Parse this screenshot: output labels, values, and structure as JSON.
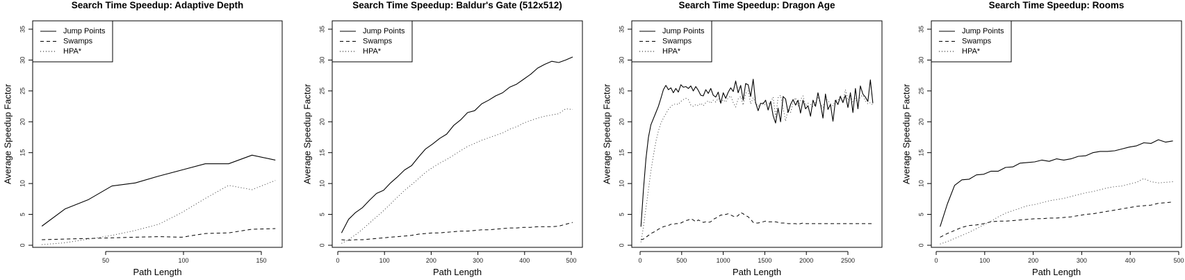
{
  "figure": {
    "yticks": [
      0,
      5,
      10,
      15,
      20,
      25,
      30,
      35
    ],
    "legend": [
      {
        "label": "Jump Points",
        "style": "solid"
      },
      {
        "label": "Swamps",
        "style": "dashed"
      },
      {
        "label": "HPA*",
        "style": "dotted"
      }
    ]
  },
  "chart_data": [
    {
      "type": "line",
      "title": "Search Time Speedup: Adaptive Depth",
      "xlabel": "Path Length",
      "ylabel": "Average Speedup Factor",
      "xticks": [
        50,
        100,
        150
      ],
      "xlim": [
        4,
        164
      ],
      "ylim": [
        0,
        35
      ],
      "grid": false,
      "legend_position": "topleft",
      "x": [
        9,
        24,
        39,
        54,
        69,
        84,
        99,
        114,
        129,
        144,
        159
      ],
      "series": [
        {
          "name": "Jump Points",
          "style": "solid",
          "values": [
            3.1,
            5.9,
            7.4,
            9.6,
            10.1,
            11.2,
            12.2,
            13.2,
            13.2,
            14.6,
            13.8
          ]
        },
        {
          "name": "Swamps",
          "style": "dashed",
          "values": [
            0.9,
            1.0,
            1.1,
            1.2,
            1.3,
            1.4,
            1.3,
            1.9,
            2.0,
            2.6,
            2.7
          ]
        },
        {
          "name": "HPA*",
          "style": "dotted",
          "values": [
            0.1,
            0.4,
            1.0,
            1.6,
            2.4,
            3.4,
            5.3,
            7.6,
            9.7,
            9.0,
            10.5
          ]
        }
      ]
    },
    {
      "type": "line",
      "title": "Search Time Speedup: Baldur's Gate (512x512)",
      "xlabel": "Path Length",
      "ylabel": "Average Speedup Factor",
      "xticks": [
        0,
        100,
        200,
        300,
        400,
        500
      ],
      "xlim": [
        -12,
        524
      ],
      "ylim": [
        0,
        35
      ],
      "grid": false,
      "legend_position": "topleft",
      "x": [
        8,
        23,
        38,
        53,
        68,
        83,
        98,
        113,
        128,
        143,
        158,
        173,
        188,
        203,
        218,
        233,
        248,
        263,
        278,
        293,
        308,
        323,
        338,
        353,
        368,
        383,
        398,
        413,
        428,
        443,
        458,
        473,
        488,
        503
      ],
      "series": [
        {
          "name": "Jump Points",
          "style": "solid",
          "values": [
            2.0,
            4.2,
            5.3,
            6.1,
            7.3,
            8.4,
            8.9,
            10.1,
            11.1,
            12.2,
            12.9,
            14.3,
            15.6,
            16.4,
            17.3,
            18.0,
            19.4,
            20.3,
            21.5,
            21.8,
            22.9,
            23.5,
            24.2,
            24.7,
            25.6,
            26.1,
            26.9,
            27.7,
            28.7,
            29.3,
            29.8,
            29.6,
            30.0,
            30.5
          ]
        },
        {
          "name": "Swamps",
          "style": "dashed",
          "values": [
            0.9,
            0.8,
            0.9,
            0.9,
            1.0,
            1.1,
            1.2,
            1.3,
            1.4,
            1.5,
            1.6,
            1.8,
            1.9,
            2.0,
            2.0,
            2.1,
            2.2,
            2.3,
            2.3,
            2.4,
            2.5,
            2.5,
            2.6,
            2.7,
            2.8,
            2.8,
            2.9,
            2.9,
            3.0,
            3.0,
            3.0,
            3.1,
            3.4,
            3.7
          ]
        },
        {
          "name": "HPA*",
          "style": "dotted",
          "values": [
            0.3,
            0.9,
            1.7,
            2.6,
            3.6,
            4.6,
            5.6,
            6.7,
            7.8,
            8.9,
            9.8,
            10.8,
            11.8,
            12.6,
            13.3,
            13.9,
            14.6,
            15.3,
            16.0,
            16.5,
            17.0,
            17.4,
            17.8,
            18.2,
            18.8,
            19.2,
            19.8,
            20.2,
            20.6,
            20.9,
            21.1,
            21.3,
            22.1,
            22.0
          ]
        }
      ]
    },
    {
      "type": "line",
      "title": "Search Time Speedup: Dragon Age",
      "xlabel": "Path Length",
      "ylabel": "Average Speedup Factor",
      "xticks": [
        0,
        500,
        1000,
        1500,
        2000,
        2500
      ],
      "xlim": [
        -100,
        2910
      ],
      "ylim": [
        0,
        35
      ],
      "grid": false,
      "legend_position": "topleft",
      "x": [
        10,
        40,
        70,
        100,
        130,
        160,
        190,
        220,
        250,
        280,
        310,
        340,
        370,
        400,
        430,
        460,
        490,
        520,
        550,
        580,
        610,
        640,
        670,
        700,
        730,
        760,
        790,
        820,
        850,
        880,
        910,
        940,
        970,
        1000,
        1030,
        1060,
        1090,
        1120,
        1150,
        1180,
        1210,
        1240,
        1270,
        1300,
        1330,
        1360,
        1390,
        1420,
        1450,
        1480,
        1510,
        1540,
        1570,
        1600,
        1630,
        1660,
        1690,
        1720,
        1750,
        1780,
        1810,
        1840,
        1870,
        1900,
        1930,
        1960,
        1990,
        2020,
        2050,
        2080,
        2110,
        2140,
        2170,
        2200,
        2230,
        2260,
        2290,
        2320,
        2350,
        2380,
        2410,
        2440,
        2470,
        2500,
        2530,
        2560,
        2590,
        2620,
        2650,
        2680,
        2710,
        2740,
        2770,
        2800
      ],
      "series": [
        {
          "name": "Jump Points",
          "style": "solid",
          "values": [
            3.0,
            9.0,
            14.0,
            17.5,
            19.5,
            20.5,
            21.5,
            22.5,
            23.8,
            25.2,
            25.9,
            25.2,
            25.5,
            24.7,
            25.4,
            24.8,
            26.0,
            25.6,
            25.7,
            25.4,
            25.8,
            25.0,
            25.7,
            25.1,
            24.3,
            24.2,
            25.2,
            24.6,
            25.4,
            24.3,
            24.0,
            24.8,
            23.0,
            24.7,
            23.8,
            24.8,
            25.5,
            24.9,
            26.6,
            24.7,
            25.9,
            23.5,
            26.2,
            26.0,
            24.1,
            26.9,
            23.1,
            21.8,
            23.0,
            22.9,
            23.5,
            21.9,
            23.3,
            21.0,
            19.8,
            22.2,
            20.0,
            24.1,
            23.7,
            21.5,
            22.8,
            23.6,
            22.7,
            23.5,
            21.4,
            23.5,
            22.1,
            22.6,
            20.9,
            23.5,
            22.5,
            24.7,
            22.9,
            20.6,
            24.5,
            22.0,
            22.8,
            20.1,
            23.5,
            22.8,
            24.1,
            23.1,
            24.3,
            22.3,
            24.7,
            21.5,
            25.4,
            22.1,
            25.8,
            24.5,
            24.0,
            23.3,
            26.8,
            23.0
          ]
        },
        {
          "name": "Swamps",
          "style": "dashed",
          "values": [
            0.9,
            1.0,
            1.3,
            1.6,
            1.9,
            2.1,
            2.3,
            2.6,
            2.8,
            3.0,
            3.1,
            3.2,
            3.4,
            3.4,
            3.5,
            3.5,
            3.6,
            3.8,
            4.0,
            4.1,
            4.3,
            4.1,
            3.8,
            4.1,
            3.9,
            3.7,
            3.8,
            3.7,
            3.8,
            4.2,
            4.4,
            4.6,
            4.9,
            4.9,
            5.0,
            5.1,
            4.9,
            4.7,
            4.6,
            4.8,
            5.3,
            5.1,
            4.8,
            4.6,
            4.2,
            3.7,
            3.6,
            3.6,
            3.7,
            3.8,
            3.9,
            3.8,
            3.8,
            3.8,
            3.8,
            3.7,
            3.6,
            3.6,
            3.6,
            3.5,
            3.5,
            3.5,
            3.5,
            3.4,
            3.5,
            3.6,
            3.5,
            3.5,
            3.5,
            3.5,
            3.5,
            3.5,
            3.5,
            3.5,
            3.5,
            3.5,
            3.5,
            3.5,
            3.5,
            3.5,
            3.5,
            3.5,
            3.5,
            3.5,
            3.5,
            3.5,
            3.5,
            3.5,
            3.5,
            3.5,
            3.5,
            3.5,
            3.5,
            3.5
          ]
        },
        {
          "name": "HPA*",
          "style": "dotted",
          "values": [
            0.5,
            3.0,
            6.0,
            9.0,
            12.0,
            14.5,
            16.8,
            18.5,
            19.8,
            20.6,
            21.3,
            22.0,
            22.5,
            22.8,
            22.9,
            22.8,
            23.3,
            23.6,
            23.8,
            23.6,
            22.7,
            22.5,
            22.8,
            22.6,
            23.0,
            22.6,
            23.1,
            23.4,
            23.0,
            23.5,
            23.2,
            23.8,
            23.0,
            23.6,
            23.2,
            23.9,
            24.2,
            23.1,
            22.4,
            23.7,
            24.1,
            22.7,
            24.6,
            25.0,
            22.9,
            23.9,
            23.0,
            22.5,
            22.9,
            23.1,
            22.6,
            22.9,
            23.1,
            24.0,
            20.8,
            23.9,
            24.3,
            22.3,
            20.1,
            22.1,
            21.5,
            23.1,
            23.9,
            22.5,
            23.6,
            24.2,
            22.6,
            23.0,
            22.8,
            22.4,
            23.1,
            24.1,
            22.8,
            22.3,
            23.8,
            23.4,
            22.9,
            22.6,
            23.6,
            23.4,
            24.3,
            23.2,
            25.2,
            23.5,
            24.5,
            23.1,
            23.8,
            22.8,
            24.1,
            24.3,
            23.4,
            22.9,
            23.1,
            22.7
          ]
        }
      ]
    },
    {
      "type": "line",
      "title": "Search Time Speedup: Rooms",
      "xlabel": "Path Length",
      "ylabel": "Average Speedup Factor",
      "xticks": [
        0,
        100,
        200,
        300,
        400,
        500
      ],
      "xlim": [
        -10,
        506
      ],
      "ylim": [
        0,
        35
      ],
      "grid": false,
      "legend_position": "topleft",
      "x": [
        8,
        23,
        38,
        53,
        68,
        83,
        98,
        113,
        128,
        143,
        158,
        173,
        188,
        203,
        218,
        233,
        248,
        263,
        278,
        293,
        308,
        323,
        338,
        353,
        368,
        383,
        398,
        413,
        428,
        443,
        458,
        473,
        488
      ],
      "series": [
        {
          "name": "Jump Points",
          "style": "solid",
          "values": [
            3.0,
            6.7,
            9.7,
            10.6,
            10.7,
            11.4,
            11.5,
            12.0,
            12.0,
            12.6,
            12.7,
            13.3,
            13.4,
            13.5,
            13.8,
            13.6,
            14.0,
            13.8,
            14.0,
            14.4,
            14.5,
            15.0,
            15.2,
            15.2,
            15.3,
            15.6,
            15.9,
            16.1,
            16.6,
            16.5,
            17.1,
            16.7,
            16.9
          ]
        },
        {
          "name": "Swamps",
          "style": "dashed",
          "values": [
            1.3,
            1.9,
            2.4,
            2.9,
            3.2,
            3.3,
            3.5,
            3.8,
            3.9,
            3.9,
            4.0,
            4.1,
            4.2,
            4.3,
            4.3,
            4.4,
            4.4,
            4.5,
            4.6,
            4.8,
            5.0,
            5.1,
            5.3,
            5.5,
            5.7,
            5.9,
            6.1,
            6.3,
            6.4,
            6.5,
            6.8,
            6.9,
            7.0
          ]
        },
        {
          "name": "HPA*",
          "style": "dotted",
          "values": [
            0.2,
            0.6,
            1.1,
            1.6,
            2.1,
            2.7,
            3.3,
            3.9,
            4.6,
            5.2,
            5.6,
            6.0,
            6.4,
            6.6,
            6.9,
            7.2,
            7.4,
            7.6,
            7.9,
            8.2,
            8.5,
            8.7,
            9.0,
            9.3,
            9.5,
            9.6,
            9.9,
            10.2,
            10.8,
            10.3,
            10.1,
            10.2,
            10.3
          ]
        }
      ]
    }
  ]
}
